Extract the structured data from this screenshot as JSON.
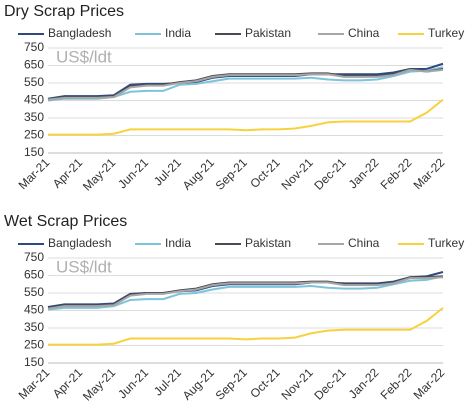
{
  "chart_data": [
    {
      "type": "line",
      "title": "Dry Scrap Prices",
      "annotation": "US$/ldt",
      "categories": [
        "Mar-21",
        null,
        "Apr-21",
        null,
        "May-21",
        null,
        "Jun-21",
        null,
        "Jul-21",
        null,
        "Aug-21",
        null,
        "Sep-21",
        null,
        "Oct-21",
        null,
        "Nov-21",
        null,
        "Dec-21",
        null,
        "Jan-22",
        null,
        "Feb-22",
        null,
        "Mar-22"
      ],
      "series": [
        {
          "name": "Bangladesh",
          "color": "#2e4a7d",
          "values": [
            460,
            475,
            475,
            475,
            480,
            540,
            545,
            545,
            550,
            555,
            580,
            590,
            590,
            590,
            590,
            590,
            600,
            600,
            600,
            600,
            600,
            610,
            630,
            630,
            660
          ]
        },
        {
          "name": "India",
          "color": "#7cc4dc",
          "values": [
            450,
            460,
            460,
            460,
            470,
            500,
            505,
            505,
            540,
            545,
            560,
            575,
            575,
            575,
            575,
            575,
            580,
            570,
            565,
            565,
            570,
            590,
            615,
            620,
            640
          ]
        },
        {
          "name": "Pakistan",
          "color": "#4a4a55",
          "values": [
            455,
            470,
            470,
            470,
            475,
            530,
            540,
            540,
            555,
            565,
            590,
            600,
            600,
            600,
            600,
            600,
            605,
            605,
            590,
            590,
            590,
            600,
            630,
            615,
            630
          ]
        },
        {
          "name": "China",
          "color": "#a6a6a6",
          "values": [
            455,
            465,
            465,
            465,
            470,
            525,
            535,
            535,
            550,
            560,
            585,
            595,
            595,
            595,
            595,
            595,
            600,
            600,
            585,
            585,
            585,
            595,
            625,
            615,
            625
          ]
        },
        {
          "name": "Turkey",
          "color": "#f7d23e",
          "values": [
            255,
            255,
            255,
            255,
            260,
            285,
            285,
            285,
            285,
            285,
            285,
            285,
            280,
            285,
            285,
            290,
            305,
            325,
            330,
            330,
            330,
            330,
            330,
            380,
            455
          ]
        }
      ],
      "ylim": [
        150,
        750
      ],
      "yticks": [
        150,
        250,
        350,
        450,
        550,
        650,
        750
      ],
      "grid": true,
      "legend": "top"
    },
    {
      "type": "line",
      "title": "Wet Scrap Prices",
      "annotation": "US$/ldt",
      "categories": [
        "Mar-21",
        null,
        "Apr-21",
        null,
        "May-21",
        null,
        "Jun-21",
        null,
        "Jul-21",
        null,
        "Aug-21",
        null,
        "Sep-21",
        null,
        "Oct-21",
        null,
        "Nov-21",
        null,
        "Dec-21",
        null,
        "Jan-22",
        null,
        "Feb-22",
        null,
        "Mar-22"
      ],
      "series": [
        {
          "name": "Bangladesh",
          "color": "#2e4a7d",
          "values": [
            470,
            485,
            485,
            485,
            490,
            545,
            550,
            550,
            560,
            565,
            590,
            600,
            600,
            600,
            600,
            600,
            610,
            610,
            605,
            605,
            605,
            615,
            640,
            645,
            670
          ]
        },
        {
          "name": "India",
          "color": "#7cc4dc",
          "values": [
            455,
            465,
            465,
            465,
            475,
            510,
            515,
            515,
            545,
            550,
            570,
            585,
            585,
            585,
            585,
            585,
            590,
            580,
            575,
            575,
            580,
            600,
            620,
            625,
            645
          ]
        },
        {
          "name": "Pakistan",
          "color": "#4a4a55",
          "values": [
            465,
            480,
            480,
            480,
            485,
            540,
            550,
            550,
            565,
            575,
            600,
            610,
            610,
            610,
            610,
            610,
            615,
            615,
            600,
            600,
            600,
            610,
            640,
            640,
            645
          ]
        },
        {
          "name": "China",
          "color": "#a6a6a6",
          "values": [
            460,
            475,
            475,
            475,
            480,
            535,
            545,
            545,
            560,
            570,
            595,
            605,
            605,
            605,
            605,
            605,
            610,
            610,
            595,
            595,
            595,
            605,
            635,
            635,
            640
          ]
        },
        {
          "name": "Turkey",
          "color": "#f7d23e",
          "values": [
            255,
            255,
            255,
            255,
            260,
            290,
            290,
            290,
            290,
            290,
            290,
            290,
            285,
            290,
            290,
            295,
            320,
            335,
            340,
            340,
            340,
            340,
            340,
            390,
            465
          ]
        }
      ],
      "ylim": [
        150,
        750
      ],
      "yticks": [
        150,
        250,
        350,
        450,
        550,
        650,
        750
      ],
      "grid": true,
      "legend": "top"
    }
  ]
}
